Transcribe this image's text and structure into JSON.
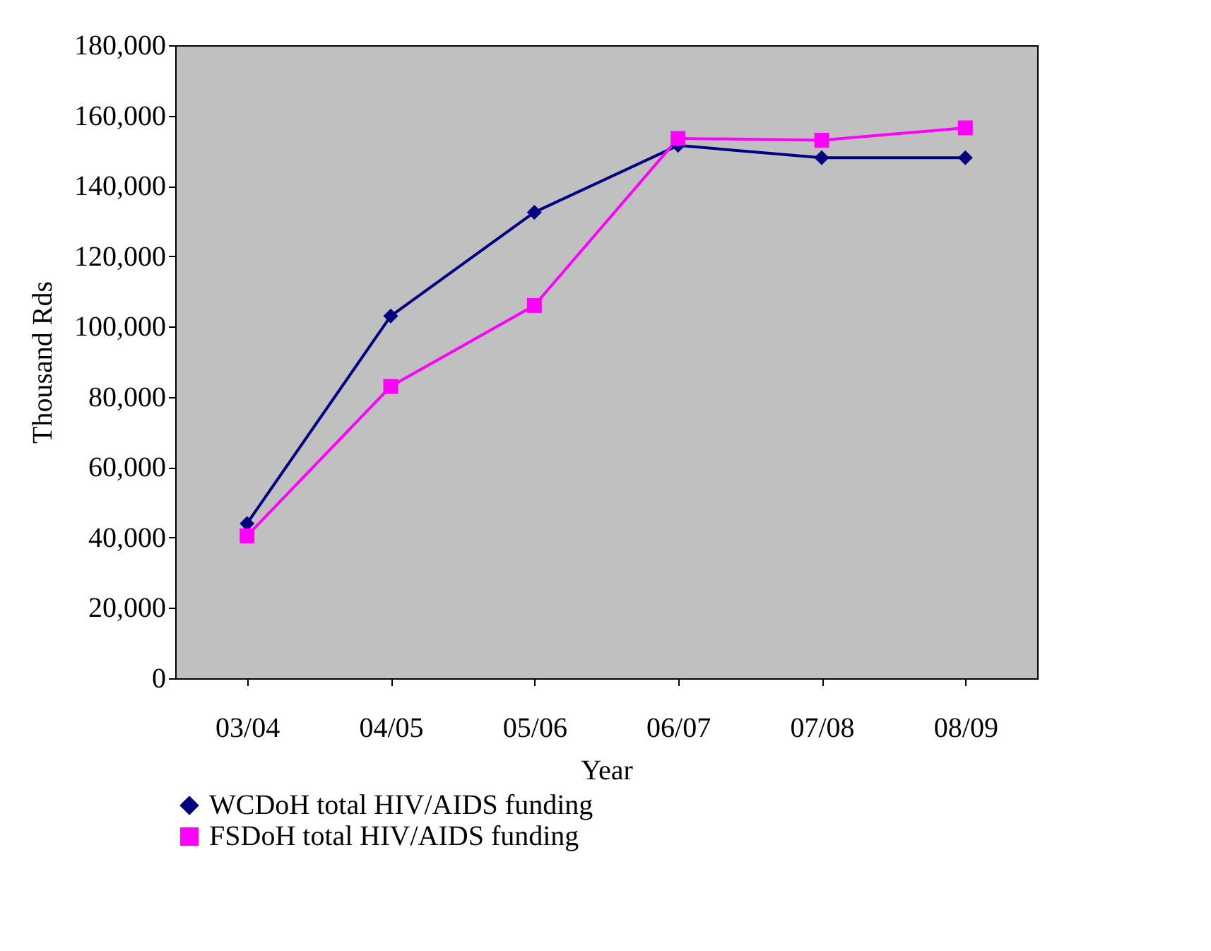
{
  "chart_data": {
    "type": "line",
    "xlabel": "Year",
    "ylabel": "Thousand Rds",
    "categories": [
      "03/04",
      "04/05",
      "05/06",
      "06/07",
      "07/08",
      "08/09"
    ],
    "series": [
      {
        "name": "WCDoH total HIV/AIDS funding",
        "color": "#000080",
        "marker": "diamond",
        "values": [
          44000,
          103000,
          132500,
          151500,
          148000,
          148000
        ]
      },
      {
        "name": "FSDoH total HIV/AIDS funding",
        "color": "#ff00ff",
        "marker": "square",
        "values": [
          40500,
          83000,
          106000,
          153500,
          153000,
          156500
        ]
      }
    ],
    "ylim": [
      0,
      180000
    ],
    "yticks": [
      0,
      {
        "value": 20000,
        "label": "20,000"
      },
      {
        "value": 40000,
        "label": "40,000"
      },
      {
        "value": 60000,
        "label": "60,000"
      },
      {
        "value": 80000,
        "label": "80,000"
      },
      {
        "value": 100000,
        "label": "100,000"
      },
      {
        "value": 120000,
        "label": "120,000"
      },
      {
        "value": 140000,
        "label": "140,000"
      },
      {
        "value": 160000,
        "label": "160,000"
      },
      {
        "value": 180000,
        "label": "180,000"
      }
    ],
    "grid": false,
    "legend": "bottom",
    "line_style": "solid"
  }
}
